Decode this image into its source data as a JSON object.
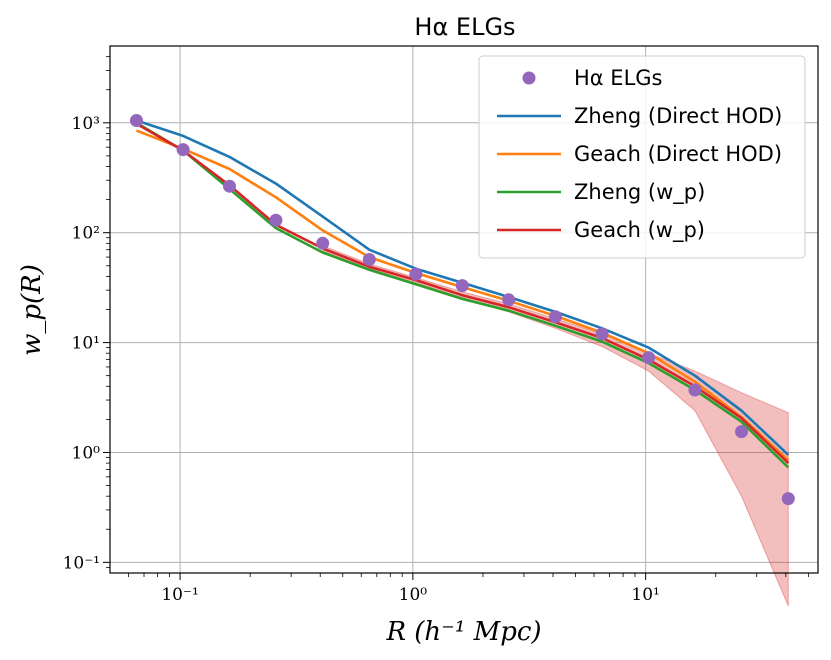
{
  "chart_data": {
    "type": "line",
    "title": "Hα ELGs",
    "xlabel": "R (h⁻¹ Mpc)",
    "ylabel": "w_p(R)",
    "xscale": "log",
    "yscale": "log",
    "xlim": [
      0.05,
      55
    ],
    "ylim": [
      0.08,
      5000
    ],
    "grid": true,
    "legend_position": "top-right",
    "x_ticks": [
      {
        "value": 0.1,
        "label": "10⁻¹"
      },
      {
        "value": 1,
        "label": "10⁰"
      },
      {
        "value": 10,
        "label": "10¹"
      }
    ],
    "y_ticks": [
      {
        "value": 0.1,
        "label": "10⁻¹"
      },
      {
        "value": 1,
        "label": "10⁰"
      },
      {
        "value": 10,
        "label": "10¹"
      },
      {
        "value": 100,
        "label": "10²"
      },
      {
        "value": 1000,
        "label": "10³"
      }
    ],
    "x": [
      0.065,
      0.103,
      0.163,
      0.258,
      0.41,
      0.65,
      1.03,
      1.63,
      2.58,
      4.1,
      6.5,
      10.3,
      16.3,
      25.8,
      41.0
    ],
    "series": [
      {
        "name": "Zheng (Direct HOD)",
        "color": "#1f77b4",
        "values": [
          1050,
          760,
          490,
          280,
          140,
          70,
          47,
          35,
          26,
          19,
          13.5,
          9.0,
          5.0,
          2.4,
          0.95
        ]
      },
      {
        "name": "Geach (Direct HOD)",
        "color": "#ff7f0e",
        "values": [
          850,
          580,
          380,
          210,
          105,
          60,
          43,
          32,
          24,
          17.5,
          12.3,
          8.0,
          4.4,
          2.1,
          0.85
        ]
      },
      {
        "name": "Zheng (w_p)",
        "color": "#2ca02c",
        "values": [
          1000,
          560,
          250,
          110,
          66,
          46,
          34,
          25,
          19.5,
          14.2,
          10.2,
          6.5,
          3.7,
          1.9,
          0.73
        ]
      },
      {
        "name": "Geach (w_p)",
        "color": "#d62728",
        "values": [
          980,
          560,
          270,
          118,
          72,
          49,
          37,
          27,
          21,
          15.3,
          11.0,
          7.0,
          4.0,
          2.05,
          0.8
        ]
      }
    ],
    "data_points": {
      "name": "Hα ELGs",
      "color": "#9467bd",
      "values": [
        1050,
        570,
        265,
        130,
        80,
        57,
        42,
        33,
        24.5,
        17.2,
        12.0,
        7.3,
        3.7,
        1.55,
        0.38
      ]
    },
    "error_band": {
      "color": "#d62728",
      "x": [
        0.41,
        0.65,
        1.03,
        1.63,
        2.58,
        4.1,
        6.5,
        10.3,
        16.3,
        25.8,
        41.0
      ],
      "lower": [
        68,
        47,
        35,
        25.5,
        19,
        13.5,
        9.2,
        5.5,
        2.4,
        0.4,
        0.01
      ],
      "upper": [
        76,
        52,
        39,
        29,
        22.5,
        16.5,
        12.0,
        8.0,
        5.5,
        3.5,
        2.3
      ]
    }
  }
}
